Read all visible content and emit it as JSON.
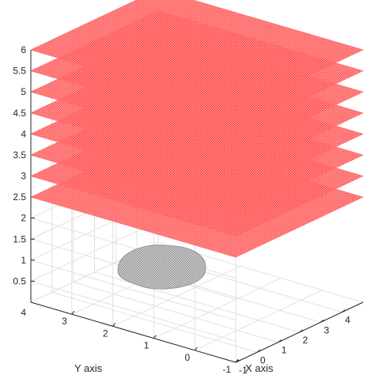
{
  "chart_data": {
    "type": "3d-surface",
    "title": "",
    "xlabel": "X axis",
    "ylabel": "Y axis",
    "zlabel": "",
    "x_ticks": [
      "-1",
      "0",
      "1",
      "2",
      "3",
      "4"
    ],
    "y_ticks": [
      "-1",
      "0",
      "1",
      "2",
      "3"
    ],
    "z_ticks": [
      "0.5",
      "1",
      "1.5",
      "2",
      "2.5",
      "3",
      "3.5",
      "4",
      "4.5",
      "5",
      "5.5",
      "6"
    ],
    "corner_tick": "4",
    "xlim": [
      -1,
      5
    ],
    "ylim": [
      -1,
      4
    ],
    "zlim": [
      0,
      6
    ],
    "grid": true,
    "planes": {
      "z_levels": [
        2.5,
        3,
        3.5,
        4,
        4.5,
        5,
        5.5,
        6
      ],
      "x_range": [
        -1,
        5
      ],
      "y_range": [
        -1,
        4
      ],
      "color": "#ff0000",
      "style": "dense mesh"
    },
    "object": {
      "description": "gray mesh point cloud near z = 0",
      "center": [
        2.1,
        2.4,
        0.5
      ],
      "color": "#9a9a9a"
    }
  }
}
